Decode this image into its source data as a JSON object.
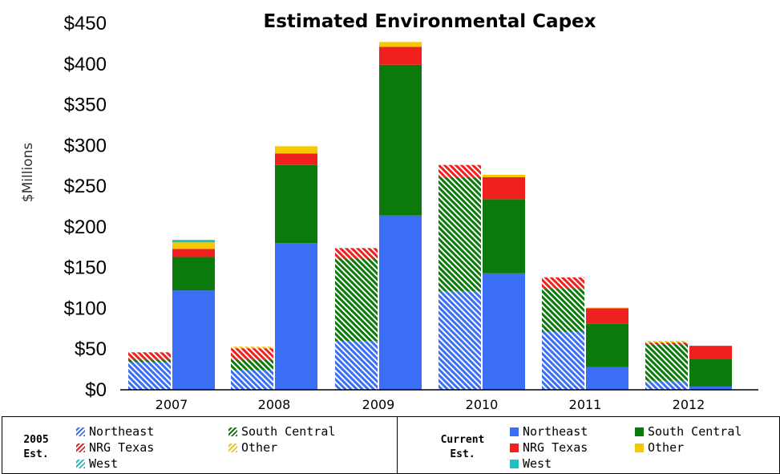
{
  "chart_data": {
    "type": "bar",
    "title": "Estimated Environmental Capex",
    "ylabel": "$Millions",
    "xlabel": "",
    "ylim": [
      0,
      450
    ],
    "yticks": [
      "$0",
      "$50",
      "$100",
      "$150",
      "$200",
      "$250",
      "$300",
      "$350",
      "$400",
      "$450"
    ],
    "categories": [
      "2007",
      "2008",
      "2009",
      "2010",
      "2011",
      "2012"
    ],
    "groups": [
      {
        "label": "2005 Est.",
        "style": "hatched",
        "series": [
          {
            "name": "Northeast",
            "color": "#3a6ef5",
            "values": [
              34,
              24,
              60,
              121,
              71,
              11
            ]
          },
          {
            "name": "South Central",
            "color": "#0a7a0a",
            "values": [
              3,
              13,
              101,
              140,
              53,
              45
            ]
          },
          {
            "name": "NRG Texas",
            "color": "#f02020",
            "values": [
              9,
              14,
              13,
              15,
              14,
              2
            ]
          },
          {
            "name": "Other",
            "color": "#f5c800",
            "values": [
              0,
              2,
              0,
              0,
              0,
              2
            ]
          },
          {
            "name": "West",
            "color": "#20c0c0",
            "values": [
              0,
              0,
              0,
              0,
              0,
              0
            ]
          }
        ]
      },
      {
        "label": "Current Est.",
        "style": "solid",
        "series": [
          {
            "name": "Northeast",
            "color": "#3a6ef5",
            "values": [
              122,
              180,
              214,
              143,
              28,
              4
            ]
          },
          {
            "name": "South Central",
            "color": "#0a7a0a",
            "values": [
              41,
              96,
              185,
              91,
              53,
              34
            ]
          },
          {
            "name": "NRG Texas",
            "color": "#f02020",
            "values": [
              10,
              14,
              22,
              27,
              19,
              16
            ]
          },
          {
            "name": "Other",
            "color": "#f5c800",
            "values": [
              8,
              9,
              6,
              3,
              1,
              0
            ]
          },
          {
            "name": "West",
            "color": "#20c0c0",
            "values": [
              3,
              0,
              0,
              0,
              0,
              0
            ]
          }
        ]
      }
    ],
    "grid": false,
    "legend_position": "bottom"
  },
  "legend": {
    "left": {
      "header_line1": "2005",
      "header_line2": "Est.",
      "items": [
        {
          "label": "Northeast",
          "icon": "hatched-swatch",
          "color": "#3a6ef5"
        },
        {
          "label": "South Central",
          "icon": "hatched-swatch",
          "color": "#0a7a0a"
        },
        {
          "label": "NRG Texas",
          "icon": "hatched-swatch",
          "color": "#f02020"
        },
        {
          "label": "Other",
          "icon": "hatched-swatch",
          "color": "#f5c800"
        },
        {
          "label": "West",
          "icon": "hatched-swatch",
          "color": "#20c0c0"
        }
      ]
    },
    "right": {
      "header_line1": "Current",
      "header_line2": "Est.",
      "items": [
        {
          "label": "Northeast",
          "icon": "solid-swatch",
          "color": "#3a6ef5"
        },
        {
          "label": "South Central",
          "icon": "solid-swatch",
          "color": "#0a7a0a"
        },
        {
          "label": "NRG Texas",
          "icon": "solid-swatch",
          "color": "#f02020"
        },
        {
          "label": "Other",
          "icon": "solid-swatch",
          "color": "#f5c800"
        },
        {
          "label": "West",
          "icon": "solid-swatch",
          "color": "#20c0c0"
        }
      ]
    }
  }
}
